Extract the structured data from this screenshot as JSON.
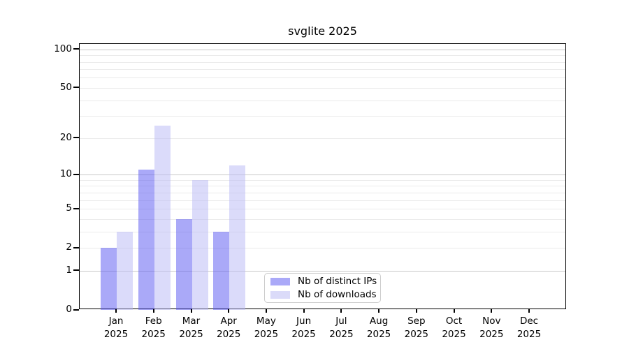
{
  "title": "svglite 2025",
  "chart_data": {
    "type": "bar",
    "title": "svglite 2025",
    "categories": [
      "Jan",
      "Feb",
      "Mar",
      "Apr",
      "May",
      "Jun",
      "Jul",
      "Aug",
      "Sep",
      "Oct",
      "Nov",
      "Dec"
    ],
    "year": "2025",
    "series": [
      {
        "name": "Nb of distinct IPs",
        "color": "rgba(85,83,242,0.5)",
        "color_hex": "#aaa9f8",
        "values": [
          2,
          11,
          4,
          3,
          0,
          0,
          0,
          0,
          0,
          0,
          0,
          0
        ]
      },
      {
        "name": "Nb of downloads",
        "color": "rgba(183,183,245,0.5)",
        "color_hex": "#dbdbf9",
        "values": [
          3,
          25,
          9,
          12,
          0,
          0,
          0,
          0,
          0,
          0,
          0,
          0
        ]
      }
    ],
    "yscale": "log1p",
    "ylim": [
      0,
      110
    ],
    "y_ticks": [
      0,
      1,
      2,
      5,
      10,
      20,
      50,
      100
    ],
    "y_minor_gridlines": [
      2,
      3,
      4,
      5,
      6,
      7,
      8,
      9,
      20,
      30,
      40,
      50,
      60,
      70,
      80,
      90
    ],
    "y_major_gridlines": [
      1,
      10,
      100
    ],
    "xlabel": "",
    "ylabel": "",
    "grid": true,
    "legend_position": "lower center"
  },
  "legend": {
    "items": [
      {
        "label": "Nb of distinct IPs"
      },
      {
        "label": "Nb of downloads"
      }
    ]
  }
}
